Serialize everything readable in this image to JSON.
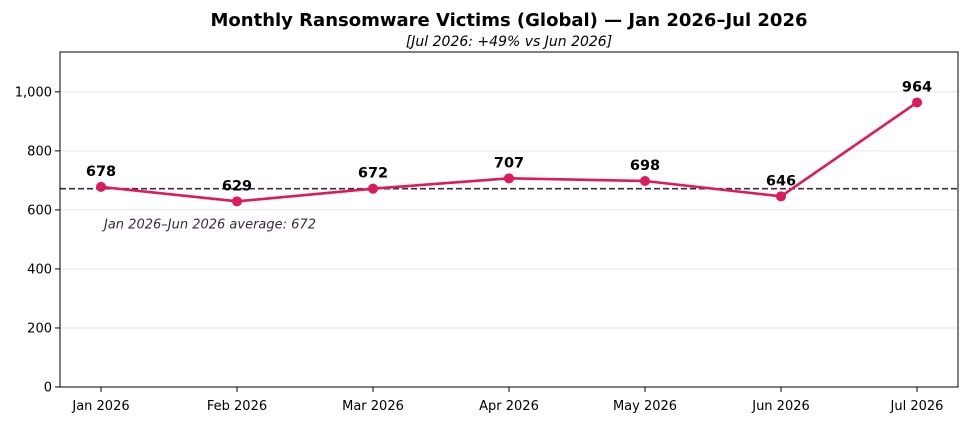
{
  "chart_data": {
    "type": "line",
    "title": "Monthly Ransomware Victims (Global) — Jan 2026–Jul 2026",
    "subtitle": "[Jul 2026: +49% vs Jun 2026]",
    "categories": [
      "Jan 2026",
      "Feb 2026",
      "Mar 2026",
      "Apr 2026",
      "May 2026",
      "Jun 2026",
      "Jul 2026"
    ],
    "series": [
      {
        "values": [
          678,
          629,
          672,
          707,
          698,
          646,
          964
        ],
        "color": "#e0185c"
      }
    ],
    "data_labels": [
      "678",
      "629",
      "672",
      "707",
      "698",
      "646",
      "964"
    ],
    "reference_line": {
      "value": 672,
      "label": "Jan 2026–Jun 2026 average: 672",
      "color": "#3b2a45",
      "style": "dashed"
    },
    "xlabel": "",
    "ylabel": "",
    "ylim": [
      0,
      1135
    ],
    "yticks": [
      0,
      200,
      400,
      600,
      800,
      1000
    ],
    "ytick_labels": [
      "0",
      "200",
      "400",
      "600",
      "800",
      "1,000"
    ],
    "grid": "horizontal",
    "legend": "none"
  }
}
